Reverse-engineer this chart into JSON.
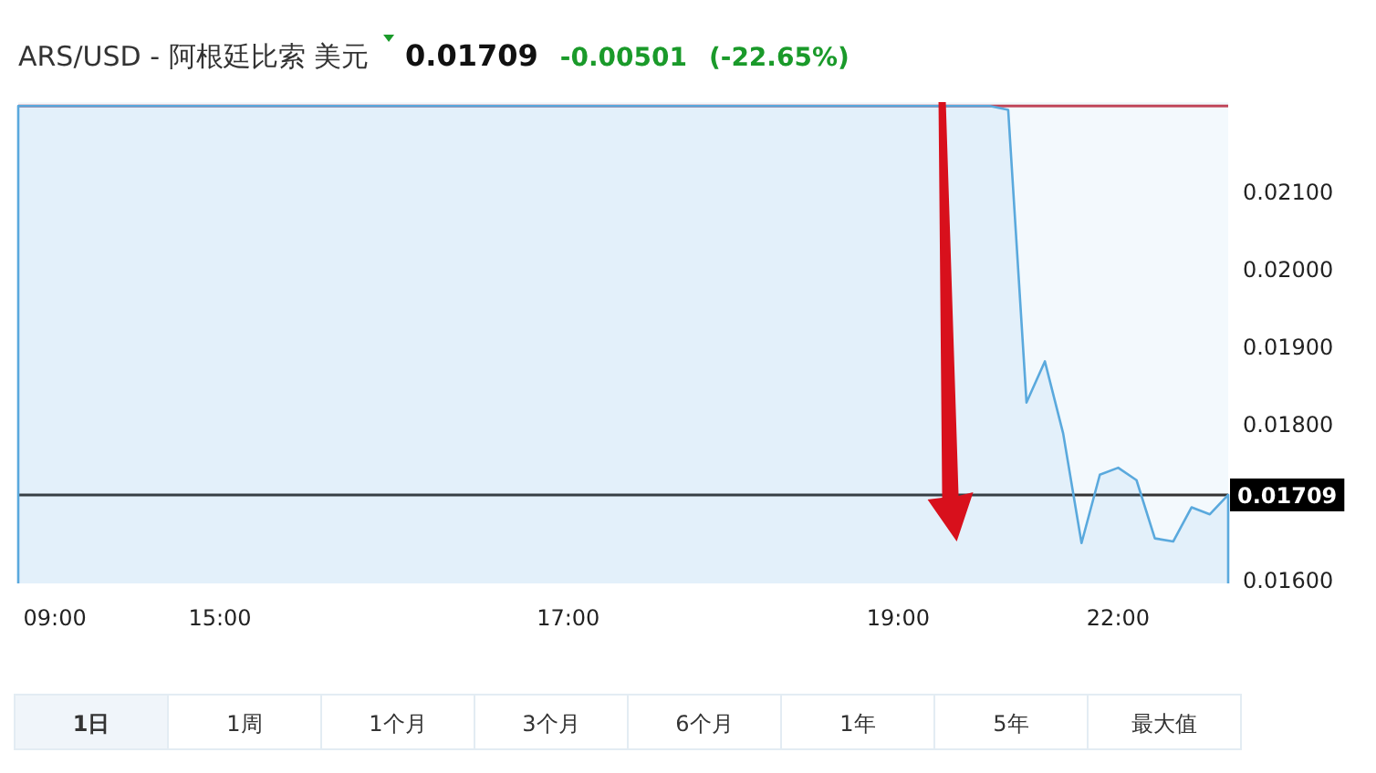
{
  "chart_data": {
    "type": "area",
    "title": "ARS/USD - 阿根廷比索 美元",
    "annotations": [
      "0.01709",
      "-0.00501",
      "(-22.65%)",
      "1日",
      "1周",
      "1个月",
      "3个月",
      "6个月",
      "1年",
      "5年",
      "最大值"
    ],
    "categories": [
      null,
      null,
      "09:00",
      null,
      null,
      null,
      null,
      null,
      null,
      null,
      null,
      "15:00",
      null,
      null,
      null,
      null,
      null,
      null,
      null,
      null,
      null,
      null,
      null,
      null,
      null,
      null,
      null,
      null,
      null,
      null,
      "17:00",
      null,
      null,
      null,
      null,
      null,
      null,
      null,
      null,
      null,
      null,
      null,
      null,
      null,
      null,
      null,
      null,
      null,
      "19:00",
      null,
      null,
      null,
      null,
      null,
      null,
      null,
      null,
      null,
      null,
      null,
      "22:00",
      null,
      null,
      null,
      null,
      null,
      null
    ],
    "series": [
      {
        "color": "#5aa9dd",
        "values": [
          0.0221,
          0.0221,
          0.0221,
          0.0221,
          0.0221,
          0.0221,
          0.0221,
          0.0221,
          0.0221,
          0.0221,
          0.0221,
          0.0221,
          0.0221,
          0.0221,
          0.0221,
          0.0221,
          0.0221,
          0.0221,
          0.0221,
          0.0221,
          0.0221,
          0.0221,
          0.0221,
          0.0221,
          0.0221,
          0.0221,
          0.0221,
          0.0221,
          0.0221,
          0.0221,
          0.0221,
          0.0221,
          0.0221,
          0.0221,
          0.0221,
          0.0221,
          0.0221,
          0.0221,
          0.0221,
          0.0221,
          0.0221,
          0.0221,
          0.0221,
          0.0221,
          0.0221,
          0.0221,
          0.0221,
          0.0221,
          0.0221,
          0.0221,
          0.0221,
          0.0221,
          0.0221,
          0.0221,
          0.02205,
          0.01828,
          0.01881,
          0.01788,
          0.01647,
          0.01735,
          0.01744,
          0.01728,
          0.01653,
          0.01649,
          0.01693,
          0.01684,
          0.01709
        ]
      }
    ],
    "ylim": [
      0.01595,
      0.02215
    ],
    "yticks": [
      {
        "value": 0.016,
        "label": "0.01600"
      },
      {
        "value": 0.018,
        "label": "0.01800"
      },
      {
        "value": 0.019,
        "label": "0.01900"
      },
      {
        "value": 0.02,
        "label": "0.02000"
      },
      {
        "value": 0.021,
        "label": "0.02100"
      }
    ],
    "ref_lines": [
      {
        "axis": "y",
        "value": 0.0221,
        "color": "#c0475a"
      },
      {
        "axis": "y",
        "value": 0.01709,
        "label": "0.01709",
        "color": "#333333"
      }
    ]
  }
}
